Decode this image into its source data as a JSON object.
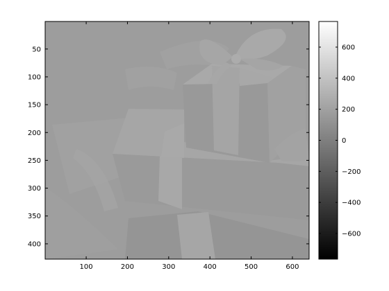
{
  "chart_data": {
    "type": "heatmap",
    "title": "",
    "xlabel": "",
    "ylabel": "",
    "colormap": "gray",
    "image_subject": "gift-boxes-with-ribbon",
    "image_width": 640,
    "image_height": 427,
    "xlim": [
      0.5,
      640.5
    ],
    "ylim": [
      0.5,
      427.5
    ],
    "x_ticks": [
      100,
      200,
      300,
      400,
      500,
      600
    ],
    "x_tick_labels": [
      "100",
      "200",
      "300",
      "400",
      "500",
      "600"
    ],
    "y_ticks": [
      50,
      100,
      150,
      200,
      250,
      300,
      350,
      400
    ],
    "y_tick_labels": [
      "50",
      "100",
      "150",
      "200",
      "250",
      "300",
      "350",
      "400"
    ],
    "colorbar": {
      "clim": [
        -765,
        765
      ],
      "ticks": [
        600,
        400,
        200,
        0,
        -200,
        -400,
        -600
      ],
      "tick_labels": [
        "600",
        "400",
        "200",
        "0",
        "−200",
        "−400",
        "−600"
      ]
    },
    "colors": {
      "background_gray": "#9b9b9b",
      "frame": "#000000"
    }
  }
}
